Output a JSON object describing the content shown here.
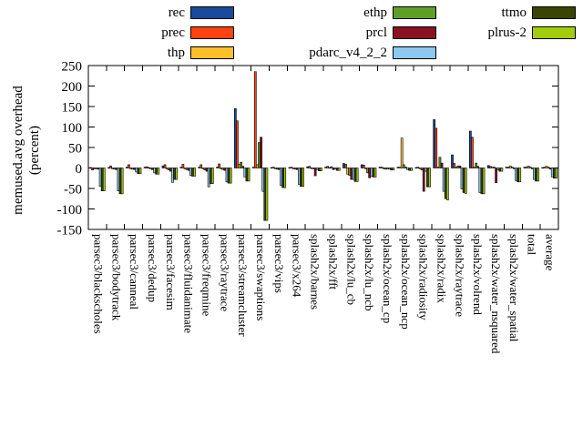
{
  "chart_data": {
    "type": "bar",
    "title": "",
    "ylabel_line1": "memused.avg overhead",
    "ylabel_line2": "(percent)",
    "ylim": [
      -150,
      250
    ],
    "yticks": [
      250,
      200,
      150,
      100,
      50,
      0,
      -50,
      -100,
      -150
    ],
    "grid": false,
    "legend_position": "top-center-3-columns",
    "categories": [
      "parsec3/blackscholes",
      "parsec3/bodytrack",
      "parsec3/canneal",
      "parsec3/dedup",
      "parsec3/facesim",
      "parsec3/fluidanimate",
      "parsec3/freqmine",
      "parsec3/raytrace",
      "parsec3/streamcluster",
      "parsec3/swaptions",
      "parsec3/vips",
      "parsec3/x264",
      "splash2x/barnes",
      "splash2x/fft",
      "splash2x/lu_cb",
      "splash2x/lu_ncb",
      "splash2x/ocean_cp",
      "splash2x/ocean_ncp",
      "splash2x/radiosity",
      "splash2x/radix",
      "splash2x/raytrace",
      "splash2x/volrend",
      "splash2x/water_nsquared",
      "splash2x/water_spatial",
      "total",
      "average"
    ],
    "series": [
      {
        "name": "rec",
        "color": "#1a4a9c",
        "values": [
          1,
          1,
          2,
          2,
          5,
          2,
          2,
          2,
          145,
          2,
          1,
          1,
          3,
          2,
          11,
          8,
          2,
          2,
          1,
          118,
          32,
          90,
          6,
          2,
          2,
          1
        ]
      },
      {
        "name": "prec",
        "color": "#ff4210",
        "values": [
          -5,
          5,
          8,
          3,
          8,
          9,
          8,
          10,
          115,
          235,
          2,
          2,
          4,
          4,
          9,
          7,
          2,
          2,
          2,
          97,
          11,
          75,
          4,
          2,
          2,
          2
        ]
      },
      {
        "name": "thp",
        "color": "#fdc029",
        "values": [
          -2,
          -2,
          -2,
          1,
          -2,
          -2,
          -2,
          -2,
          9,
          8,
          -2,
          -2,
          -1,
          1,
          -15,
          -2,
          -2,
          73,
          -2,
          2,
          2,
          2,
          2,
          5,
          5,
          4
        ]
      },
      {
        "name": "ethp",
        "color": "#5da028",
        "values": [
          -2,
          -3,
          -3,
          -2,
          -5,
          -4,
          -5,
          -4,
          14,
          62,
          -3,
          -3,
          -2,
          3,
          -18,
          -12,
          -3,
          8,
          -5,
          26,
          5,
          12,
          2,
          2,
          2,
          2
        ]
      },
      {
        "name": "prcl",
        "color": "#8b1021",
        "values": [
          -3,
          -4,
          -4,
          -4,
          -8,
          -6,
          -8,
          -6,
          4,
          75,
          -4,
          -4,
          -19,
          -4,
          -28,
          -24,
          -2,
          2,
          -57,
          12,
          5,
          4,
          -36,
          -2,
          -2,
          -3
        ]
      },
      {
        "name": "pdarc_v4_2_2",
        "color": "#8cc8f0",
        "values": [
          -45,
          -56,
          -10,
          -12,
          -35,
          -18,
          -46,
          -34,
          -22,
          -57,
          -43,
          -40,
          -4,
          -2,
          -28,
          -20,
          -3,
          -4,
          -8,
          -57,
          -51,
          -60,
          -5,
          -31,
          -28,
          -22
        ]
      },
      {
        "name": "ttmo",
        "color": "#3a4404",
        "values": [
          -56,
          -63,
          -14,
          -15,
          -28,
          -20,
          -38,
          -37,
          -32,
          -128,
          -48,
          -45,
          -7,
          -6,
          -33,
          -22,
          -5,
          -6,
          -46,
          -75,
          -60,
          -63,
          -8,
          -34,
          -32,
          -25
        ]
      },
      {
        "name": "plrus-2",
        "color": "#a3cc0b",
        "values": [
          -56,
          -63,
          -14,
          -15,
          -28,
          -20,
          -38,
          -37,
          -32,
          -128,
          -48,
          -45,
          -7,
          -6,
          -33,
          -22,
          -5,
          -6,
          -46,
          -78,
          -62,
          -63,
          -8,
          -34,
          -32,
          -25
        ]
      }
    ]
  }
}
